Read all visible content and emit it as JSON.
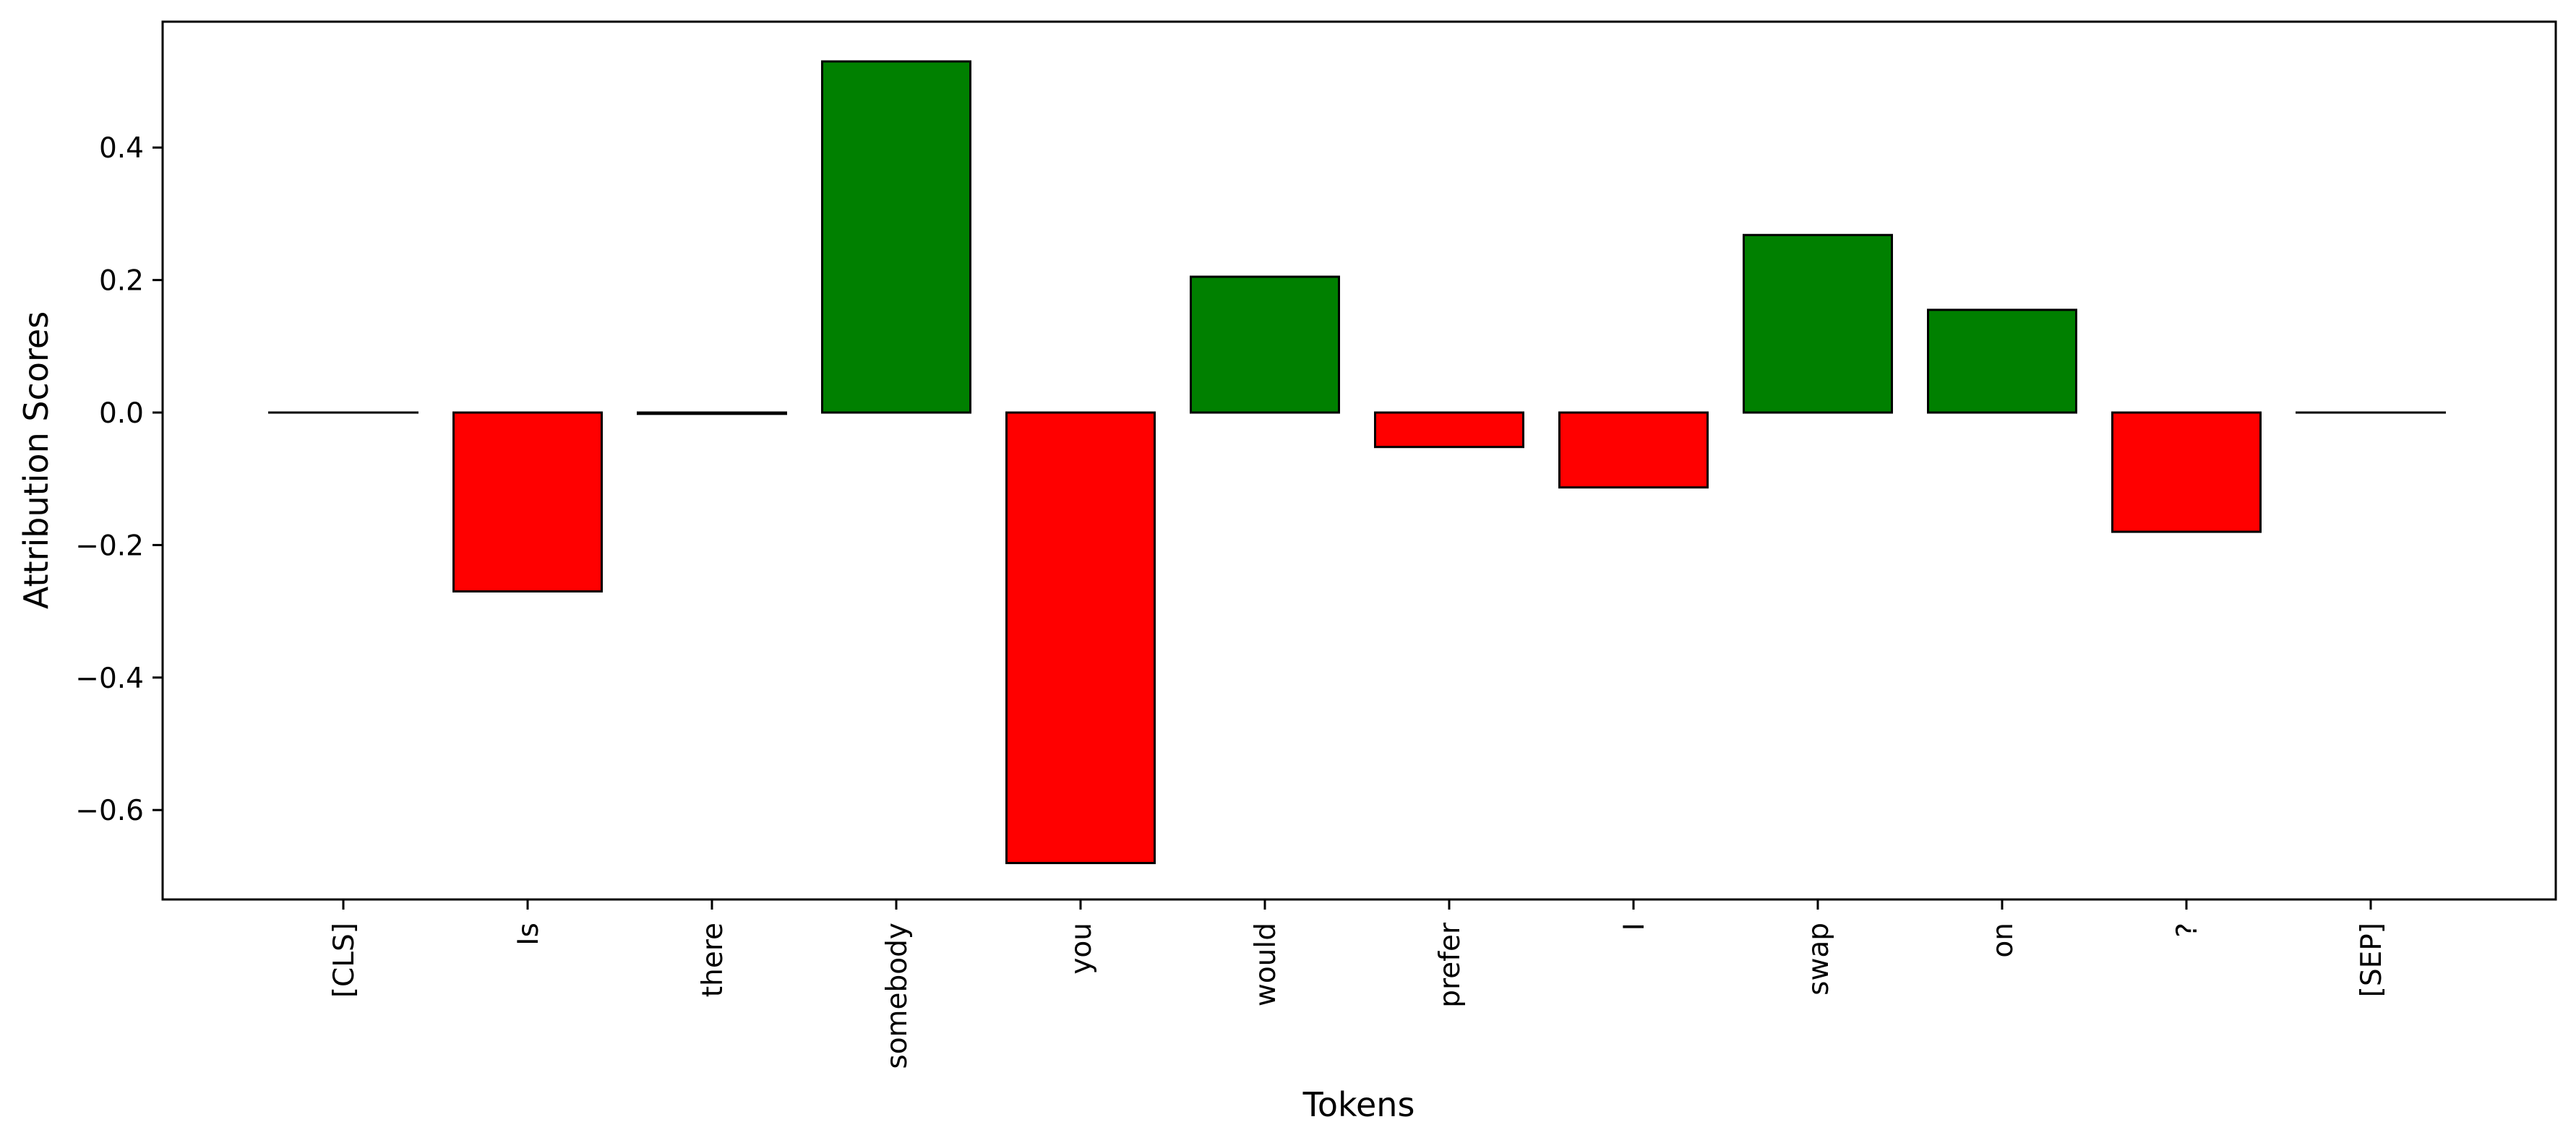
{
  "chart_data": {
    "type": "bar",
    "title": "",
    "xlabel": "Tokens",
    "ylabel": "Attribution Scores",
    "categories": [
      "[CLS]",
      "Is",
      "there",
      "somebody",
      "you",
      "would",
      "prefer",
      "I",
      "swap",
      "on",
      "?",
      "[SEP]"
    ],
    "values": [
      0.0,
      -0.27,
      -0.002,
      0.53,
      -0.68,
      0.205,
      -0.052,
      -0.113,
      0.268,
      0.155,
      -0.18,
      0.0
    ],
    "ylim": [
      -0.735,
      0.59
    ],
    "yticks": [
      -0.6,
      -0.4,
      -0.2,
      0.0,
      0.2,
      0.4
    ],
    "ytick_labels": [
      "−0.6",
      "−0.4",
      "−0.2",
      "0.0",
      "0.2",
      "0.4"
    ],
    "grid": false,
    "legend": "none",
    "colors": {
      "positive": "#008000",
      "negative": "#ff0000",
      "edge": "#000000"
    }
  }
}
